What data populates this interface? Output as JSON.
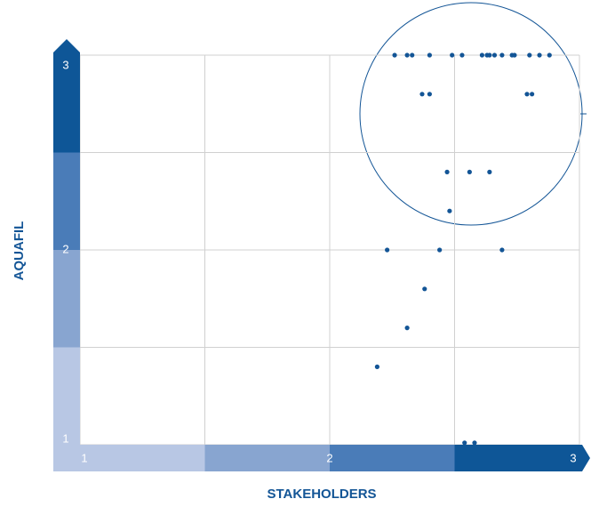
{
  "chart_data": {
    "type": "scatter",
    "xlabel": "STAKEHOLDERS",
    "ylabel": "AQUAFIL",
    "x": [
      2.26,
      2.31,
      2.33,
      2.4,
      2.49,
      2.53,
      2.61,
      2.63,
      2.64,
      2.66,
      2.69,
      2.73,
      2.74,
      2.8,
      2.84,
      2.88,
      2.37,
      2.4,
      2.79,
      2.81,
      2.47,
      2.56,
      2.64,
      2.48,
      2.23,
      2.44,
      2.69,
      2.38,
      2.31,
      2.19,
      2.54,
      2.58
    ],
    "y": [
      3,
      3,
      3,
      3,
      3,
      3,
      3,
      3,
      3,
      3,
      3,
      3,
      3,
      3,
      3,
      3,
      2.8,
      2.8,
      2.8,
      2.8,
      2.4,
      2.4,
      2.4,
      2.2,
      2,
      2,
      2,
      1.8,
      1.6,
      1.4,
      1.01,
      1.01
    ],
    "color": "#135596",
    "xlim": [
      1,
      3
    ],
    "ylim": [
      1,
      3
    ],
    "xticks": [
      1,
      2,
      3
    ],
    "yticks": [
      1,
      2,
      3
    ],
    "grid": true
  }
}
